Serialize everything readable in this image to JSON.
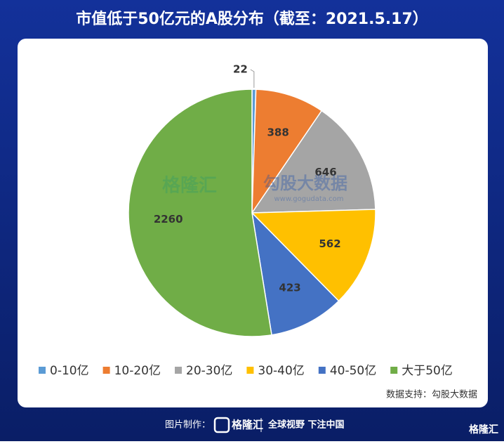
{
  "chart_data": {
    "type": "pie",
    "title": "市值低于50亿元的A股分布（截至：2021.5.17）",
    "categories": [
      "0-10亿",
      "10-20亿",
      "20-30亿",
      "30-40亿",
      "40-50亿",
      "大于50亿"
    ],
    "values": [
      22,
      388,
      646,
      562,
      423,
      2260
    ],
    "colors": [
      "#5b9bd5",
      "#ed7d31",
      "#a5a5a5",
      "#ffc000",
      "#4472c4",
      "#70ad47"
    ],
    "legend": "bottom",
    "source": "数据支持：勾股大数据"
  },
  "watermark": {
    "brand": "格隆汇",
    "partner": "勾股大数据",
    "url": "www.gogudata.com"
  },
  "footer": {
    "made_by": "图片制作：",
    "brand": "格隆汇",
    "slogan": "全球视野 下注中国",
    "corner": "格隆汇"
  }
}
